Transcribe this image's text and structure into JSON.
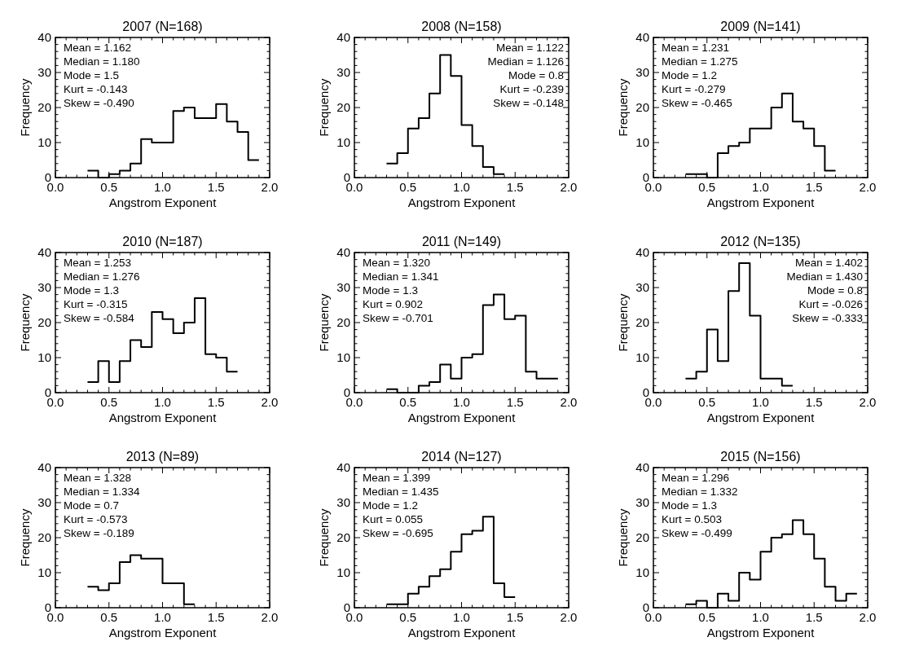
{
  "chart_data": [
    {
      "type": "histogram",
      "title": "2007 (N=168)",
      "xlabel": "Angstrom Exponent",
      "ylabel": "Frequency",
      "color": "#000000",
      "bins": [
        0.3,
        0.4,
        0.5,
        0.6,
        0.7,
        0.8,
        0.9,
        1.0,
        1.1,
        1.2,
        1.3,
        1.4,
        1.5,
        1.6,
        1.7,
        1.8,
        1.9
      ],
      "values": [
        2,
        0,
        1,
        2,
        4,
        11,
        10,
        10,
        19,
        20,
        17,
        17,
        21,
        16,
        13,
        5
      ],
      "xlim": [
        0,
        2
      ],
      "ylim": [
        0,
        40
      ],
      "xticks": [
        {
          "value": 0,
          "label": "0.0"
        },
        {
          "value": 0.5,
          "label": "0.5"
        },
        {
          "value": 1,
          "label": "1.0"
        },
        {
          "value": 1.5,
          "label": "1.5"
        },
        {
          "value": 2,
          "label": "2.0"
        }
      ],
      "yticks": [
        0,
        10,
        20,
        30,
        40
      ],
      "annotations": [
        "Mean = 1.162",
        "Median = 1.180",
        "Mode = 1.5",
        "Kurt = -0.143",
        "Skew = -0.490"
      ]
    },
    {
      "type": "histogram",
      "title": "2008 (N=158)",
      "xlabel": "Angstrom Exponent",
      "ylabel": "Frequency",
      "color": "#000000",
      "bins": [
        0.3,
        0.4,
        0.5,
        0.6,
        0.7,
        0.8,
        0.9,
        1.0,
        1.1,
        1.2,
        1.3,
        1.4
      ],
      "values": [
        4,
        7,
        14,
        17,
        24,
        35,
        29,
        15,
        9,
        3,
        1
      ],
      "xlim": [
        0,
        2
      ],
      "ylim": [
        0,
        40
      ],
      "xticks": [
        {
          "value": 0,
          "label": "0.0"
        },
        {
          "value": 0.5,
          "label": "0.5"
        },
        {
          "value": 1,
          "label": "1.0"
        },
        {
          "value": 1.5,
          "label": "1.5"
        },
        {
          "value": 2,
          "label": "2.0"
        }
      ],
      "yticks": [
        0,
        10,
        20,
        30,
        40
      ],
      "annotations": [
        "Mean = 1.122",
        "Median = 1.126",
        "Mode = 0.8",
        "Kurt = -0.239",
        "Skew = -0.148"
      ]
    },
    {
      "type": "histogram",
      "title": "2009 (N=141)",
      "xlabel": "Angstrom Exponent",
      "ylabel": "Frequency",
      "color": "#000000",
      "bins": [
        0.3,
        0.4,
        0.5,
        0.6,
        0.7,
        0.8,
        0.9,
        1.0,
        1.1,
        1.2,
        1.3,
        1.4,
        1.5,
        1.6,
        1.7
      ],
      "values": [
        1,
        1,
        0,
        7,
        9,
        10,
        14,
        14,
        20,
        24,
        16,
        14,
        9,
        2
      ],
      "xlim": [
        0,
        2
      ],
      "ylim": [
        0,
        40
      ],
      "xticks": [
        {
          "value": 0,
          "label": "0.0"
        },
        {
          "value": 0.5,
          "label": "0.5"
        },
        {
          "value": 1,
          "label": "1.0"
        },
        {
          "value": 1.5,
          "label": "1.5"
        },
        {
          "value": 2,
          "label": "2.0"
        }
      ],
      "yticks": [
        0,
        10,
        20,
        30,
        40
      ],
      "annotations": [
        "Mean = 1.231",
        "Median = 1.275",
        "Mode = 1.2",
        "Kurt = -0.279",
        "Skew = -0.465"
      ]
    },
    {
      "type": "histogram",
      "title": "2010 (N=187)",
      "xlabel": "Angstrom Exponent",
      "ylabel": "Frequency",
      "color": "#000000",
      "bins": [
        0.3,
        0.4,
        0.5,
        0.6,
        0.7,
        0.8,
        0.9,
        1.0,
        1.1,
        1.2,
        1.3,
        1.4,
        1.5,
        1.6,
        1.7
      ],
      "values": [
        3,
        9,
        3,
        9,
        15,
        13,
        23,
        21,
        17,
        20,
        27,
        11,
        10,
        6
      ],
      "xlim": [
        0,
        2
      ],
      "ylim": [
        0,
        40
      ],
      "xticks": [
        {
          "value": 0,
          "label": "0.0"
        },
        {
          "value": 0.5,
          "label": "0.5"
        },
        {
          "value": 1,
          "label": "1.0"
        },
        {
          "value": 1.5,
          "label": "1.5"
        },
        {
          "value": 2,
          "label": "2.0"
        }
      ],
      "yticks": [
        0,
        10,
        20,
        30,
        40
      ],
      "annotations": [
        "Mean = 1.253",
        "Median = 1.276",
        "Mode = 1.3",
        "Kurt = -0.315",
        "Skew = -0.584"
      ]
    },
    {
      "type": "histogram",
      "title": "2011 (N=149)",
      "xlabel": "Angstrom Exponent",
      "ylabel": "Frequency",
      "color": "#000000",
      "bins": [
        0.3,
        0.4,
        0.5,
        0.6,
        0.7,
        0.8,
        0.9,
        1.0,
        1.1,
        1.2,
        1.3,
        1.4,
        1.5,
        1.6,
        1.7,
        1.8,
        1.9
      ],
      "values": [
        1,
        0,
        0,
        2,
        3,
        8,
        4,
        10,
        11,
        25,
        28,
        21,
        22,
        6,
        4,
        4
      ],
      "xlim": [
        0,
        2
      ],
      "ylim": [
        0,
        40
      ],
      "xticks": [
        {
          "value": 0,
          "label": "0.0"
        },
        {
          "value": 0.5,
          "label": "0.5"
        },
        {
          "value": 1,
          "label": "1.0"
        },
        {
          "value": 1.5,
          "label": "1.5"
        },
        {
          "value": 2,
          "label": "2.0"
        }
      ],
      "yticks": [
        0,
        10,
        20,
        30,
        40
      ],
      "annotations": [
        "Mean = 1.320",
        "Median = 1.341",
        "Mode = 1.3",
        "Kurt = 0.902",
        "Skew = -0.701"
      ]
    },
    {
      "type": "histogram",
      "title": "2012 (N=135)",
      "xlabel": "Angstrom Exponent",
      "ylabel": "Frequency",
      "color": "#000000",
      "bins": [
        0.3,
        0.4,
        0.5,
        0.6,
        0.7,
        0.8,
        0.9,
        1.0,
        1.1,
        1.2,
        1.3
      ],
      "values": [
        4,
        6,
        18,
        9,
        29,
        37,
        22,
        4,
        4,
        2
      ],
      "xlim": [
        0,
        2
      ],
      "ylim": [
        0,
        40
      ],
      "xticks": [
        {
          "value": 0,
          "label": "0.0"
        },
        {
          "value": 0.5,
          "label": "0.5"
        },
        {
          "value": 1,
          "label": "1.0"
        },
        {
          "value": 1.5,
          "label": "1.5"
        },
        {
          "value": 2,
          "label": "2.0"
        }
      ],
      "yticks": [
        0,
        10,
        20,
        30,
        40
      ],
      "annotations": [
        "Mean = 1.402",
        "Median = 1.430",
        "Mode = 0.8",
        "Kurt = -0.026",
        "Skew = -0.333"
      ]
    },
    {
      "type": "histogram",
      "title": "2013 (N=89)",
      "xlabel": "Angstrom Exponent",
      "ylabel": "Frequency",
      "color": "#000000",
      "bins": [
        0.3,
        0.4,
        0.5,
        0.6,
        0.7,
        0.8,
        0.9,
        1.0,
        1.1,
        1.2,
        1.3
      ],
      "values": [
        6,
        5,
        7,
        13,
        15,
        14,
        14,
        7,
        7,
        1
      ],
      "xlim": [
        0,
        2
      ],
      "ylim": [
        0,
        40
      ],
      "xticks": [
        {
          "value": 0,
          "label": "0.0"
        },
        {
          "value": 0.5,
          "label": "0.5"
        },
        {
          "value": 1,
          "label": "1.0"
        },
        {
          "value": 1.5,
          "label": "1.5"
        },
        {
          "value": 2,
          "label": "2.0"
        }
      ],
      "yticks": [
        0,
        10,
        20,
        30,
        40
      ],
      "annotations": [
        "Mean = 1.328",
        "Median = 1.334",
        "Mode = 0.7",
        "Kurt = -0.573",
        "Skew = -0.189"
      ]
    },
    {
      "type": "histogram",
      "title": "2014 (N=127)",
      "xlabel": "Angstrom Exponent",
      "ylabel": "Frequency",
      "color": "#000000",
      "bins": [
        0.3,
        0.4,
        0.5,
        0.6,
        0.7,
        0.8,
        0.9,
        1.0,
        1.1,
        1.2,
        1.3,
        1.4,
        1.5
      ],
      "values": [
        1,
        1,
        4,
        6,
        9,
        11,
        16,
        21,
        22,
        26,
        7,
        3
      ],
      "xlim": [
        0,
        2
      ],
      "ylim": [
        0,
        40
      ],
      "xticks": [
        {
          "value": 0,
          "label": "0.0"
        },
        {
          "value": 0.5,
          "label": "0.5"
        },
        {
          "value": 1,
          "label": "1.0"
        },
        {
          "value": 1.5,
          "label": "1.5"
        },
        {
          "value": 2,
          "label": "2.0"
        }
      ],
      "yticks": [
        0,
        10,
        20,
        30,
        40
      ],
      "annotations": [
        "Mean = 1.399",
        "Median = 1.435",
        "Mode = 1.2",
        "Kurt = 0.055",
        "Skew = -0.695"
      ]
    },
    {
      "type": "histogram",
      "title": "2015 (N=156)",
      "xlabel": "Angstrom Exponent",
      "ylabel": "Frequency",
      "color": "#000000",
      "bins": [
        0.3,
        0.4,
        0.5,
        0.6,
        0.7,
        0.8,
        0.9,
        1.0,
        1.1,
        1.2,
        1.3,
        1.4,
        1.5,
        1.6,
        1.7,
        1.8,
        1.9
      ],
      "values": [
        1,
        2,
        0,
        4,
        2,
        10,
        8,
        16,
        20,
        21,
        25,
        21,
        14,
        6,
        2,
        4
      ],
      "xlim": [
        0,
        2
      ],
      "ylim": [
        0,
        40
      ],
      "xticks": [
        {
          "value": 0,
          "label": "0.0"
        },
        {
          "value": 0.5,
          "label": "0.5"
        },
        {
          "value": 1,
          "label": "1.0"
        },
        {
          "value": 1.5,
          "label": "1.5"
        },
        {
          "value": 2,
          "label": "2.0"
        }
      ],
      "yticks": [
        0,
        10,
        20,
        30,
        40
      ],
      "annotations": [
        "Mean = 1.296",
        "Median = 1.332",
        "Mode = 1.3",
        "Kurt = 0.503",
        "Skew = -0.499"
      ]
    }
  ]
}
